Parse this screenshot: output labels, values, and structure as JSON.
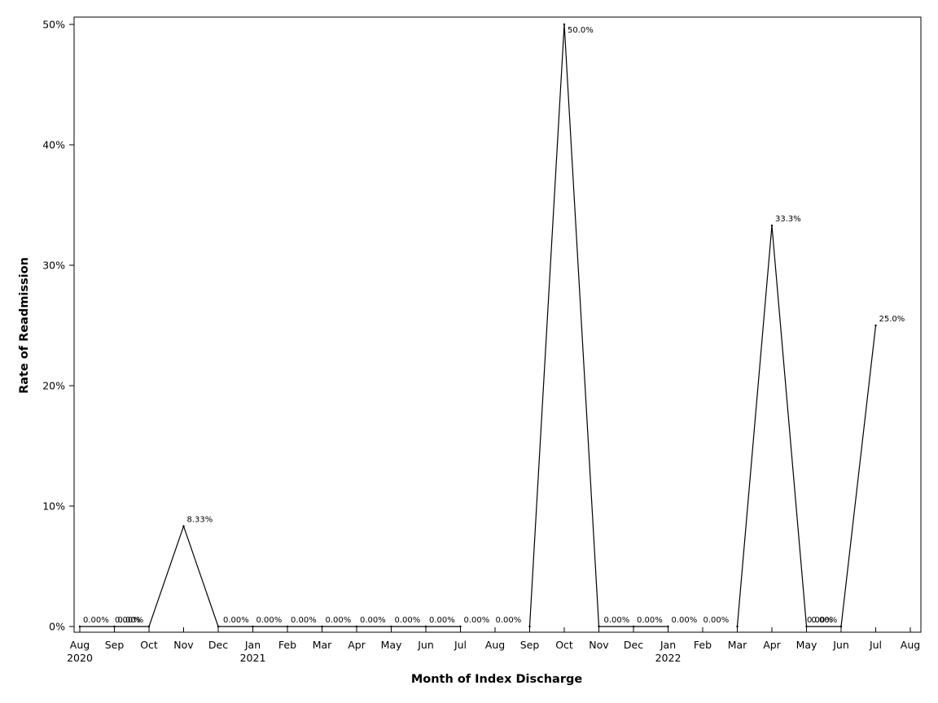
{
  "chart_data": {
    "type": "line",
    "xlabel": "Month of Index Discharge",
    "ylabel": "Rate of Readmission",
    "ylim": [
      0,
      50
    ],
    "yticks": [
      "0%",
      "10%",
      "20%",
      "30%",
      "40%",
      "50%"
    ],
    "ytick_values": [
      0,
      10,
      20,
      30,
      40,
      50
    ],
    "x_ticks": [
      {
        "month": "Aug",
        "year": "2020"
      },
      {
        "month": "Sep",
        "year": ""
      },
      {
        "month": "Oct",
        "year": ""
      },
      {
        "month": "Nov",
        "year": ""
      },
      {
        "month": "Dec",
        "year": ""
      },
      {
        "month": "Jan",
        "year": "2021"
      },
      {
        "month": "Feb",
        "year": ""
      },
      {
        "month": "Mar",
        "year": ""
      },
      {
        "month": "Apr",
        "year": ""
      },
      {
        "month": "May",
        "year": ""
      },
      {
        "month": "Jun",
        "year": ""
      },
      {
        "month": "Jul",
        "year": ""
      },
      {
        "month": "Aug",
        "year": ""
      },
      {
        "month": "Sep",
        "year": ""
      },
      {
        "month": "Oct",
        "year": ""
      },
      {
        "month": "Nov",
        "year": ""
      },
      {
        "month": "Dec",
        "year": ""
      },
      {
        "month": "Jan",
        "year": "2022"
      },
      {
        "month": "Feb",
        "year": ""
      },
      {
        "month": "Mar",
        "year": ""
      },
      {
        "month": "Apr",
        "year": ""
      },
      {
        "month": "May",
        "year": ""
      },
      {
        "month": "Jun",
        "year": ""
      },
      {
        "month": "Jul",
        "year": ""
      },
      {
        "month": "Aug",
        "year": ""
      }
    ],
    "series": [
      {
        "points": [
          {
            "x": "2020-08",
            "y": 0,
            "label": "0.00%"
          },
          {
            "x": "2020-09",
            "y": 0,
            "label": "0.00%"
          },
          {
            "x": "2020-10",
            "y": 0,
            "label": "0.00%"
          },
          {
            "x": "2020-11",
            "y": 8.33,
            "label": "8.33%"
          },
          {
            "x": "2020-12",
            "y": 0,
            "label": "0.00%"
          },
          {
            "x": "2021-01",
            "y": 0,
            "label": "0.00%"
          },
          {
            "x": "2021-02",
            "y": 0,
            "label": "0.00%"
          },
          {
            "x": "2021-03",
            "y": 0,
            "label": "0.00%"
          },
          {
            "x": "2021-04",
            "y": 0,
            "label": "0.00%"
          },
          {
            "x": "2021-05",
            "y": 0,
            "label": "0.00%"
          },
          {
            "x": "2021-06",
            "y": 0,
            "label": "0.00%"
          },
          {
            "x": "2021-07",
            "y": 0,
            "label": "0.00%"
          },
          {
            "x": "2021-09",
            "y": 0,
            "label": "0.00%"
          },
          {
            "x": "2021-10",
            "y": 50.0,
            "label": "50.0%"
          },
          {
            "x": "2021-11",
            "y": 0,
            "label": "0.00%"
          },
          {
            "x": "2021-12",
            "y": 0,
            "label": "0.00%"
          },
          {
            "x": "2022-01",
            "y": 0,
            "label": "0.00%"
          },
          {
            "x": "2022-03",
            "y": 0,
            "label": "0.00%"
          },
          {
            "x": "2022-04",
            "y": 33.3,
            "label": "33.3%"
          },
          {
            "x": "2022-05",
            "y": 0,
            "label": "0.00%"
          },
          {
            "x": "2022-06",
            "y": 0,
            "label": "0.00%"
          },
          {
            "x": "2022-07",
            "y": 25.0,
            "label": "25.0%"
          }
        ]
      }
    ],
    "grid": false,
    "legend": "none",
    "line_color": "#000000"
  }
}
